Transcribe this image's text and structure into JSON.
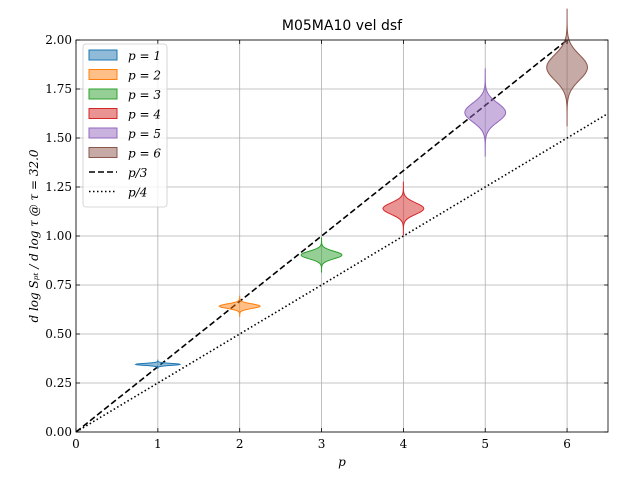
{
  "chart_data": {
    "type": "violin",
    "title": "M05MA10 vel dsf",
    "xlabel": "p",
    "ylabel": "d log Sₚₜ / d log τ @ τ = 32.0",
    "xlim": [
      0,
      6.5
    ],
    "ylim": [
      0,
      2.0
    ],
    "xticks": [
      0,
      1,
      2,
      3,
      4,
      5,
      6
    ],
    "xtick_labels": [
      "0",
      "1",
      "2",
      "3",
      "4",
      "5",
      "6"
    ],
    "yticks": [
      0,
      0.25,
      0.5,
      0.75,
      1.0,
      1.25,
      1.5,
      1.75,
      2.0
    ],
    "ytick_labels": [
      "0.00",
      "0.25",
      "0.50",
      "0.75",
      "1.00",
      "1.25",
      "1.50",
      "1.75",
      "2.00"
    ],
    "grid": true,
    "legend_position": "top-left",
    "series": [
      {
        "name": "p = 1",
        "x": 1,
        "center": 0.345,
        "spread": 0.008,
        "halfwidth": 0.27,
        "color": "#1f77b4"
      },
      {
        "name": "p = 2",
        "x": 2,
        "center": 0.642,
        "spread": 0.018,
        "halfwidth": 0.25,
        "color": "#ff7f0e"
      },
      {
        "name": "p = 3",
        "x": 3,
        "center": 0.903,
        "spread": 0.03,
        "halfwidth": 0.25,
        "color": "#2ca02c"
      },
      {
        "name": "p = 4",
        "x": 4,
        "center": 1.14,
        "spread": 0.045,
        "halfwidth": 0.25,
        "color": "#d62728"
      },
      {
        "name": "p = 5",
        "x": 5,
        "center": 1.63,
        "spread": 0.075,
        "halfwidth": 0.25,
        "color": "#9467bd"
      },
      {
        "name": "p = 6",
        "x": 6,
        "center": 1.86,
        "spread": 0.1,
        "halfwidth": 0.25,
        "color": "#8c564b"
      }
    ],
    "lines": [
      {
        "name": "p/3",
        "slope": 0.33333,
        "style": "dashed"
      },
      {
        "name": "p/4",
        "slope": 0.25,
        "style": "dotted"
      }
    ]
  }
}
